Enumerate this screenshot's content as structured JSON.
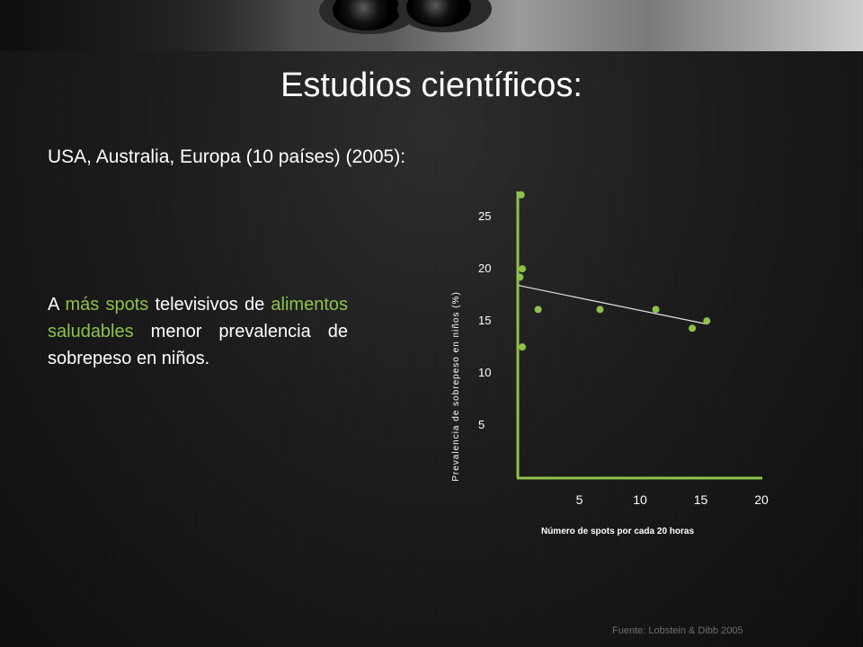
{
  "slide": {
    "title": "Estudios científicos:",
    "subtitle": "USA, Australia, Europa (10 países) (2005):",
    "body": {
      "w1": "A",
      "w2": "más spots",
      "w3": "televisivos de",
      "w4": "alimentos saludables",
      "w5": "menor prevalencia de sobrepeso en niños."
    },
    "source": "Fuente: Lobstein & Dibb 2005"
  },
  "colors": {
    "accent": "#8fc24a",
    "axis": "#8fc24a",
    "trendline": "#e6e6e6",
    "text": "#ffffff"
  },
  "chart_data": {
    "type": "scatter",
    "xlabel": "Número de spots por cada 20 horas",
    "ylabel": "Prevalencia de sobrepeso en niños (%)",
    "xticks": [
      "5",
      "10",
      "15",
      "20"
    ],
    "yticks": [
      "25",
      "20",
      "15",
      "10",
      "5"
    ],
    "xlim": [
      0,
      20
    ],
    "ylim": [
      0,
      28
    ],
    "points": [
      {
        "x": 0.2,
        "y": 27
      },
      {
        "x": 0.3,
        "y": 19.9
      },
      {
        "x": 0.1,
        "y": 19.1
      },
      {
        "x": 1.6,
        "y": 16
      },
      {
        "x": 6.7,
        "y": 16
      },
      {
        "x": 11.3,
        "y": 16
      },
      {
        "x": 14.3,
        "y": 14.2
      },
      {
        "x": 15.5,
        "y": 14.9
      },
      {
        "x": 0.3,
        "y": 12.4
      }
    ],
    "trendline": {
      "from": {
        "x": 0,
        "y": 18.3
      },
      "to": {
        "x": 15.5,
        "y": 14.6
      }
    },
    "grid": false,
    "legend": "none"
  }
}
